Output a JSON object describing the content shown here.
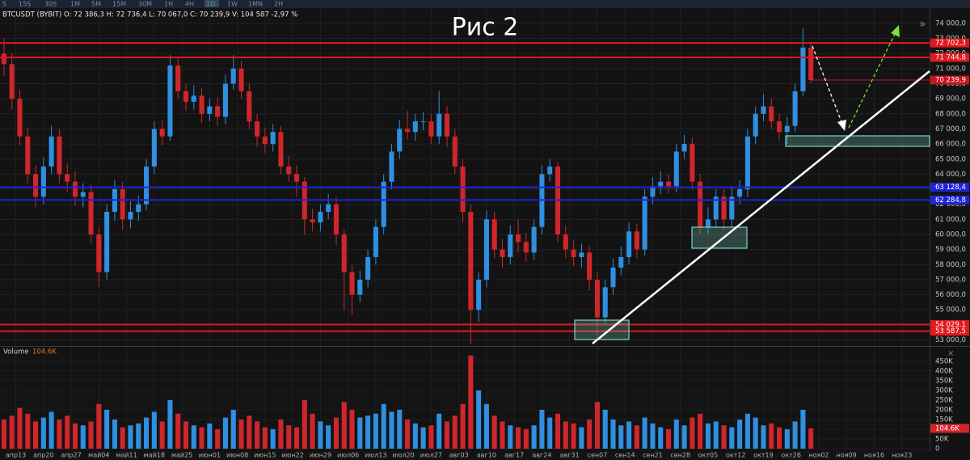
{
  "toolbar": {
    "timeframes": [
      "S",
      "15S",
      "30S",
      "1M",
      "5M",
      "15M",
      "30M",
      "1H",
      "4H",
      "1D",
      "1W",
      "1MN",
      "2H"
    ],
    "active": "1D"
  },
  "chart_data": {
    "type": "candlestick",
    "title": "Рис 2",
    "info": "BTCUSDT (BYBIT) O: 72 386,3 H: 72 736,4 L: 70 067,0 C: 70 239,9 V: 104 587 -2,97 %",
    "up_color": "#2f8fe0",
    "down_color": "#d0262b",
    "grid": true,
    "x": [
      0,
      2,
      4,
      6,
      8,
      10,
      12,
      14,
      16,
      18,
      20,
      22,
      24,
      26,
      28,
      30,
      32,
      34,
      36,
      38,
      40,
      42,
      44,
      46,
      48,
      50,
      52,
      54,
      56,
      58,
      60,
      62,
      64,
      66,
      68,
      70,
      72,
      74,
      76,
      78,
      80,
      82,
      84,
      86,
      88,
      90,
      92,
      94,
      96,
      98,
      100,
      102,
      104,
      106,
      108,
      110,
      112,
      114,
      116,
      118,
      120,
      122,
      124,
      126,
      128,
      130,
      132,
      134,
      136,
      138,
      140,
      142,
      144,
      146,
      148,
      150,
      152,
      154,
      156,
      158,
      160,
      162,
      164,
      166,
      168,
      170,
      172,
      174,
      176,
      178,
      180,
      182,
      184,
      186,
      188,
      190,
      192,
      194,
      196,
      198,
      200,
      202,
      204
    ],
    "open": [
      72000,
      71300,
      69000,
      66500,
      64000,
      62500,
      64500,
      66500,
      64000,
      63500,
      62500,
      62800,
      60000,
      57500,
      61500,
      63000,
      61000,
      61500,
      62000,
      64500,
      67000,
      66500,
      71200,
      69500,
      68800,
      69200,
      68000,
      68500,
      67800,
      70000,
      71000,
      69500,
      67500,
      66500,
      66000,
      66800,
      64500,
      64000,
      63500,
      61000,
      60800,
      61500,
      62000,
      60000,
      57500,
      56000,
      57000,
      58500,
      60500,
      63500,
      65500,
      67000,
      66800,
      67500,
      67500,
      66500,
      68000,
      66500,
      64500,
      61500,
      55000,
      57000,
      61000,
      59000,
      58500,
      60000,
      59500,
      58800,
      60500,
      64000,
      64500,
      60000,
      59000,
      58500,
      58800,
      57000,
      54500,
      56500,
      57800,
      58500,
      60200,
      59000,
      62500,
      63200,
      63500,
      63200,
      65500,
      66000,
      63500,
      60500,
      61000,
      62500,
      61000,
      62500,
      63000,
      66500,
      68000,
      68500,
      67500,
      66800,
      67200,
      69500,
      72386.3
    ],
    "high": [
      73000,
      72000,
      69600,
      67100,
      64600,
      65100,
      67200,
      67000,
      64700,
      64200,
      63400,
      63300,
      60500,
      62000,
      63600,
      63500,
      62200,
      62600,
      65000,
      67500,
      67600,
      71900,
      71700,
      70000,
      69900,
      69700,
      69000,
      69100,
      70600,
      71900,
      71500,
      70000,
      68000,
      67100,
      67300,
      67200,
      65200,
      64600,
      63800,
      61700,
      62000,
      62700,
      62500,
      60300,
      58000,
      57600,
      59000,
      61000,
      64000,
      66000,
      67600,
      68200,
      68000,
      68100,
      68000,
      69500,
      68500,
      67000,
      65000,
      62000,
      57500,
      61600,
      61500,
      59700,
      60600,
      61000,
      60100,
      61000,
      64600,
      65000,
      64800,
      60600,
      59600,
      59400,
      59200,
      57500,
      57000,
      58400,
      59200,
      60800,
      60700,
      63000,
      63800,
      64200,
      64000,
      66000,
      66600,
      66400,
      64000,
      61800,
      63000,
      63000,
      63200,
      63600,
      67000,
      68500,
      69300,
      69000,
      68000,
      67800,
      70000,
      73700,
      72736.4
    ],
    "low": [
      70500,
      68300,
      65900,
      63400,
      61800,
      62000,
      64000,
      63400,
      62800,
      61900,
      61800,
      59400,
      56500,
      57000,
      60900,
      60300,
      60400,
      60900,
      61600,
      64000,
      65900,
      66200,
      69000,
      68200,
      68300,
      67400,
      67500,
      67200,
      67300,
      69600,
      69000,
      67000,
      65800,
      65400,
      65500,
      64000,
      63500,
      62500,
      60000,
      60200,
      60200,
      61000,
      59300,
      55000,
      54700,
      55500,
      56500,
      58000,
      60000,
      63000,
      65000,
      66300,
      66200,
      66900,
      66000,
      66000,
      65800,
      64000,
      60800,
      52700,
      54200,
      56500,
      58400,
      57800,
      58000,
      58800,
      58200,
      58300,
      60000,
      63500,
      59500,
      58400,
      57900,
      57800,
      56300,
      53200,
      54000,
      56000,
      57300,
      58000,
      58400,
      58600,
      62000,
      62700,
      62700,
      62800,
      65000,
      63000,
      60000,
      60000,
      60500,
      60300,
      60500,
      62000,
      62500,
      66000,
      67500,
      67000,
      66200,
      66000,
      66800,
      69200,
      70067
    ],
    "close": [
      71300,
      69000,
      66500,
      64000,
      62500,
      64500,
      66500,
      64000,
      63500,
      62500,
      62800,
      60000,
      57500,
      61500,
      63000,
      61000,
      61500,
      62000,
      64500,
      67000,
      66500,
      71200,
      69500,
      68800,
      69200,
      68000,
      68500,
      67800,
      70000,
      71000,
      69500,
      67500,
      66500,
      66000,
      66800,
      64500,
      64000,
      63500,
      61000,
      60800,
      61500,
      62000,
      60000,
      57500,
      56000,
      57000,
      58500,
      60500,
      63500,
      65500,
      67000,
      66800,
      67500,
      67500,
      66500,
      68000,
      66500,
      64500,
      61500,
      55000,
      57000,
      61000,
      59000,
      58500,
      60000,
      59500,
      58800,
      60500,
      64000,
      64500,
      60000,
      59000,
      58500,
      58800,
      57000,
      54500,
      56500,
      57800,
      58500,
      60200,
      59000,
      62500,
      63200,
      63500,
      63200,
      65500,
      66000,
      63500,
      60500,
      61000,
      62500,
      61000,
      62500,
      63000,
      66500,
      68000,
      68500,
      67500,
      66800,
      67200,
      69500,
      72400,
      70239.9
    ],
    "xlim": [
      -1,
      234
    ],
    "xticks": [
      {
        "value": 3,
        "label": "апр13"
      },
      {
        "value": 10,
        "label": "апр20"
      },
      {
        "value": 17,
        "label": "апр27"
      },
      {
        "value": 24,
        "label": "май04"
      },
      {
        "value": 31,
        "label": "май11"
      },
      {
        "value": 38,
        "label": "май18"
      },
      {
        "value": 45,
        "label": "май25"
      },
      {
        "value": 52,
        "label": "июн01"
      },
      {
        "value": 59,
        "label": "июн08"
      },
      {
        "value": 66,
        "label": "июн15"
      },
      {
        "value": 73,
        "label": "июн22"
      },
      {
        "value": 80,
        "label": "июн29"
      },
      {
        "value": 87,
        "label": "июл06"
      },
      {
        "value": 94,
        "label": "июл13"
      },
      {
        "value": 101,
        "label": "июл20"
      },
      {
        "value": 108,
        "label": "июл27"
      },
      {
        "value": 115,
        "label": "авг03"
      },
      {
        "value": 122,
        "label": "авг10"
      },
      {
        "value": 129,
        "label": "авг17"
      },
      {
        "value": 136,
        "label": "авг24"
      },
      {
        "value": 143,
        "label": "авг31"
      },
      {
        "value": 150,
        "label": "сен07"
      },
      {
        "value": 157,
        "label": "сен14"
      },
      {
        "value": 164,
        "label": "сен21"
      },
      {
        "value": 171,
        "label": "сен28"
      },
      {
        "value": 178,
        "label": "окт05"
      },
      {
        "value": 185,
        "label": "окт12"
      },
      {
        "value": 192,
        "label": "окт19"
      },
      {
        "value": 199,
        "label": "окт26"
      },
      {
        "value": 206,
        "label": "ноя02"
      },
      {
        "value": 213,
        "label": "ноя09"
      },
      {
        "value": 220,
        "label": "ноя16"
      },
      {
        "value": 227,
        "label": "ноя23"
      }
    ],
    "ylim": [
      52600,
      74800
    ],
    "yticks": [
      {
        "value": 53000,
        "label": "53 000,0"
      },
      {
        "value": 54000,
        "label": "54 000,0"
      },
      {
        "value": 55000,
        "label": "55 000,0"
      },
      {
        "value": 56000,
        "label": "56 000,0"
      },
      {
        "value": 57000,
        "label": "57 000,0"
      },
      {
        "value": 58000,
        "label": "58 000,0"
      },
      {
        "value": 59000,
        "label": "59 000,0"
      },
      {
        "value": 60000,
        "label": "60 000,0"
      },
      {
        "value": 61000,
        "label": "61 000,0"
      },
      {
        "value": 62000,
        "label": "62 000,0"
      },
      {
        "value": 63000,
        "label": "63 000,0"
      },
      {
        "value": 64000,
        "label": "64 000,0"
      },
      {
        "value": 65000,
        "label": "65 000,0"
      },
      {
        "value": 66000,
        "label": "66 000,0"
      },
      {
        "value": 67000,
        "label": "67 000,0"
      },
      {
        "value": 68000,
        "label": "68 000,0"
      },
      {
        "value": 69000,
        "label": "69 000,0"
      },
      {
        "value": 70000,
        "label": "70 000,0"
      },
      {
        "value": 71000,
        "label": "71 000,0"
      },
      {
        "value": 72000,
        "label": "72 000,0"
      },
      {
        "value": 73000,
        "label": "73 000,0"
      },
      {
        "value": 74000,
        "label": "74 000,0"
      }
    ],
    "levels": [
      {
        "value": 72702.3,
        "label": "72 702,3",
        "color": "#e0191f"
      },
      {
        "value": 71744.8,
        "label": "71 744,8",
        "color": "#e0191f"
      },
      {
        "value": 63128.4,
        "label": "63 128,4",
        "color": "#1f24d6"
      },
      {
        "value": 62284.8,
        "label": "62 284,8",
        "color": "#1f24d6"
      },
      {
        "value": 54029.1,
        "label": "54 029,1",
        "color": "#e0191f"
      },
      {
        "value": 53587.5,
        "label": "53 587,5",
        "color": "#e0191f"
      }
    ],
    "last_price": {
      "value": 70239.9,
      "label": "70 239,9",
      "color": "#c4161c"
    },
    "volume": {
      "label": "Volume",
      "last_label": "104.6K",
      "values": [
        150000,
        170000,
        210000,
        180000,
        140000,
        160000,
        190000,
        150000,
        170000,
        130000,
        120000,
        140000,
        230000,
        200000,
        150000,
        110000,
        120000,
        130000,
        160000,
        190000,
        140000,
        250000,
        180000,
        140000,
        120000,
        110000,
        130000,
        100000,
        160000,
        200000,
        150000,
        170000,
        140000,
        110000,
        100000,
        150000,
        120000,
        110000,
        250000,
        180000,
        140000,
        120000,
        160000,
        240000,
        200000,
        160000,
        170000,
        180000,
        230000,
        190000,
        200000,
        150000,
        130000,
        110000,
        120000,
        180000,
        140000,
        170000,
        230000,
        480000,
        300000,
        230000,
        170000,
        140000,
        120000,
        110000,
        100000,
        120000,
        200000,
        160000,
        180000,
        140000,
        130000,
        110000,
        150000,
        240000,
        200000,
        150000,
        120000,
        140000,
        120000,
        160000,
        130000,
        110000,
        100000,
        150000,
        120000,
        160000,
        180000,
        130000,
        140000,
        120000,
        110000,
        150000,
        180000,
        160000,
        120000,
        130000,
        110000,
        100000,
        140000,
        200000,
        104600
      ],
      "ylim": [
        0,
        520000
      ],
      "yticks": [
        0,
        {
          "value": 50000,
          "label": "50K"
        },
        {
          "value": 100000,
          "label": "100K"
        },
        {
          "value": 150000,
          "label": "150K"
        },
        {
          "value": 200000,
          "label": "200K"
        },
        {
          "value": 250000,
          "label": "250K"
        },
        {
          "value": 300000,
          "label": "300K"
        },
        {
          "value": 350000,
          "label": "350K"
        },
        {
          "value": 400000,
          "label": "400K"
        },
        {
          "value": 450000,
          "label": "450K"
        }
      ]
    }
  }
}
